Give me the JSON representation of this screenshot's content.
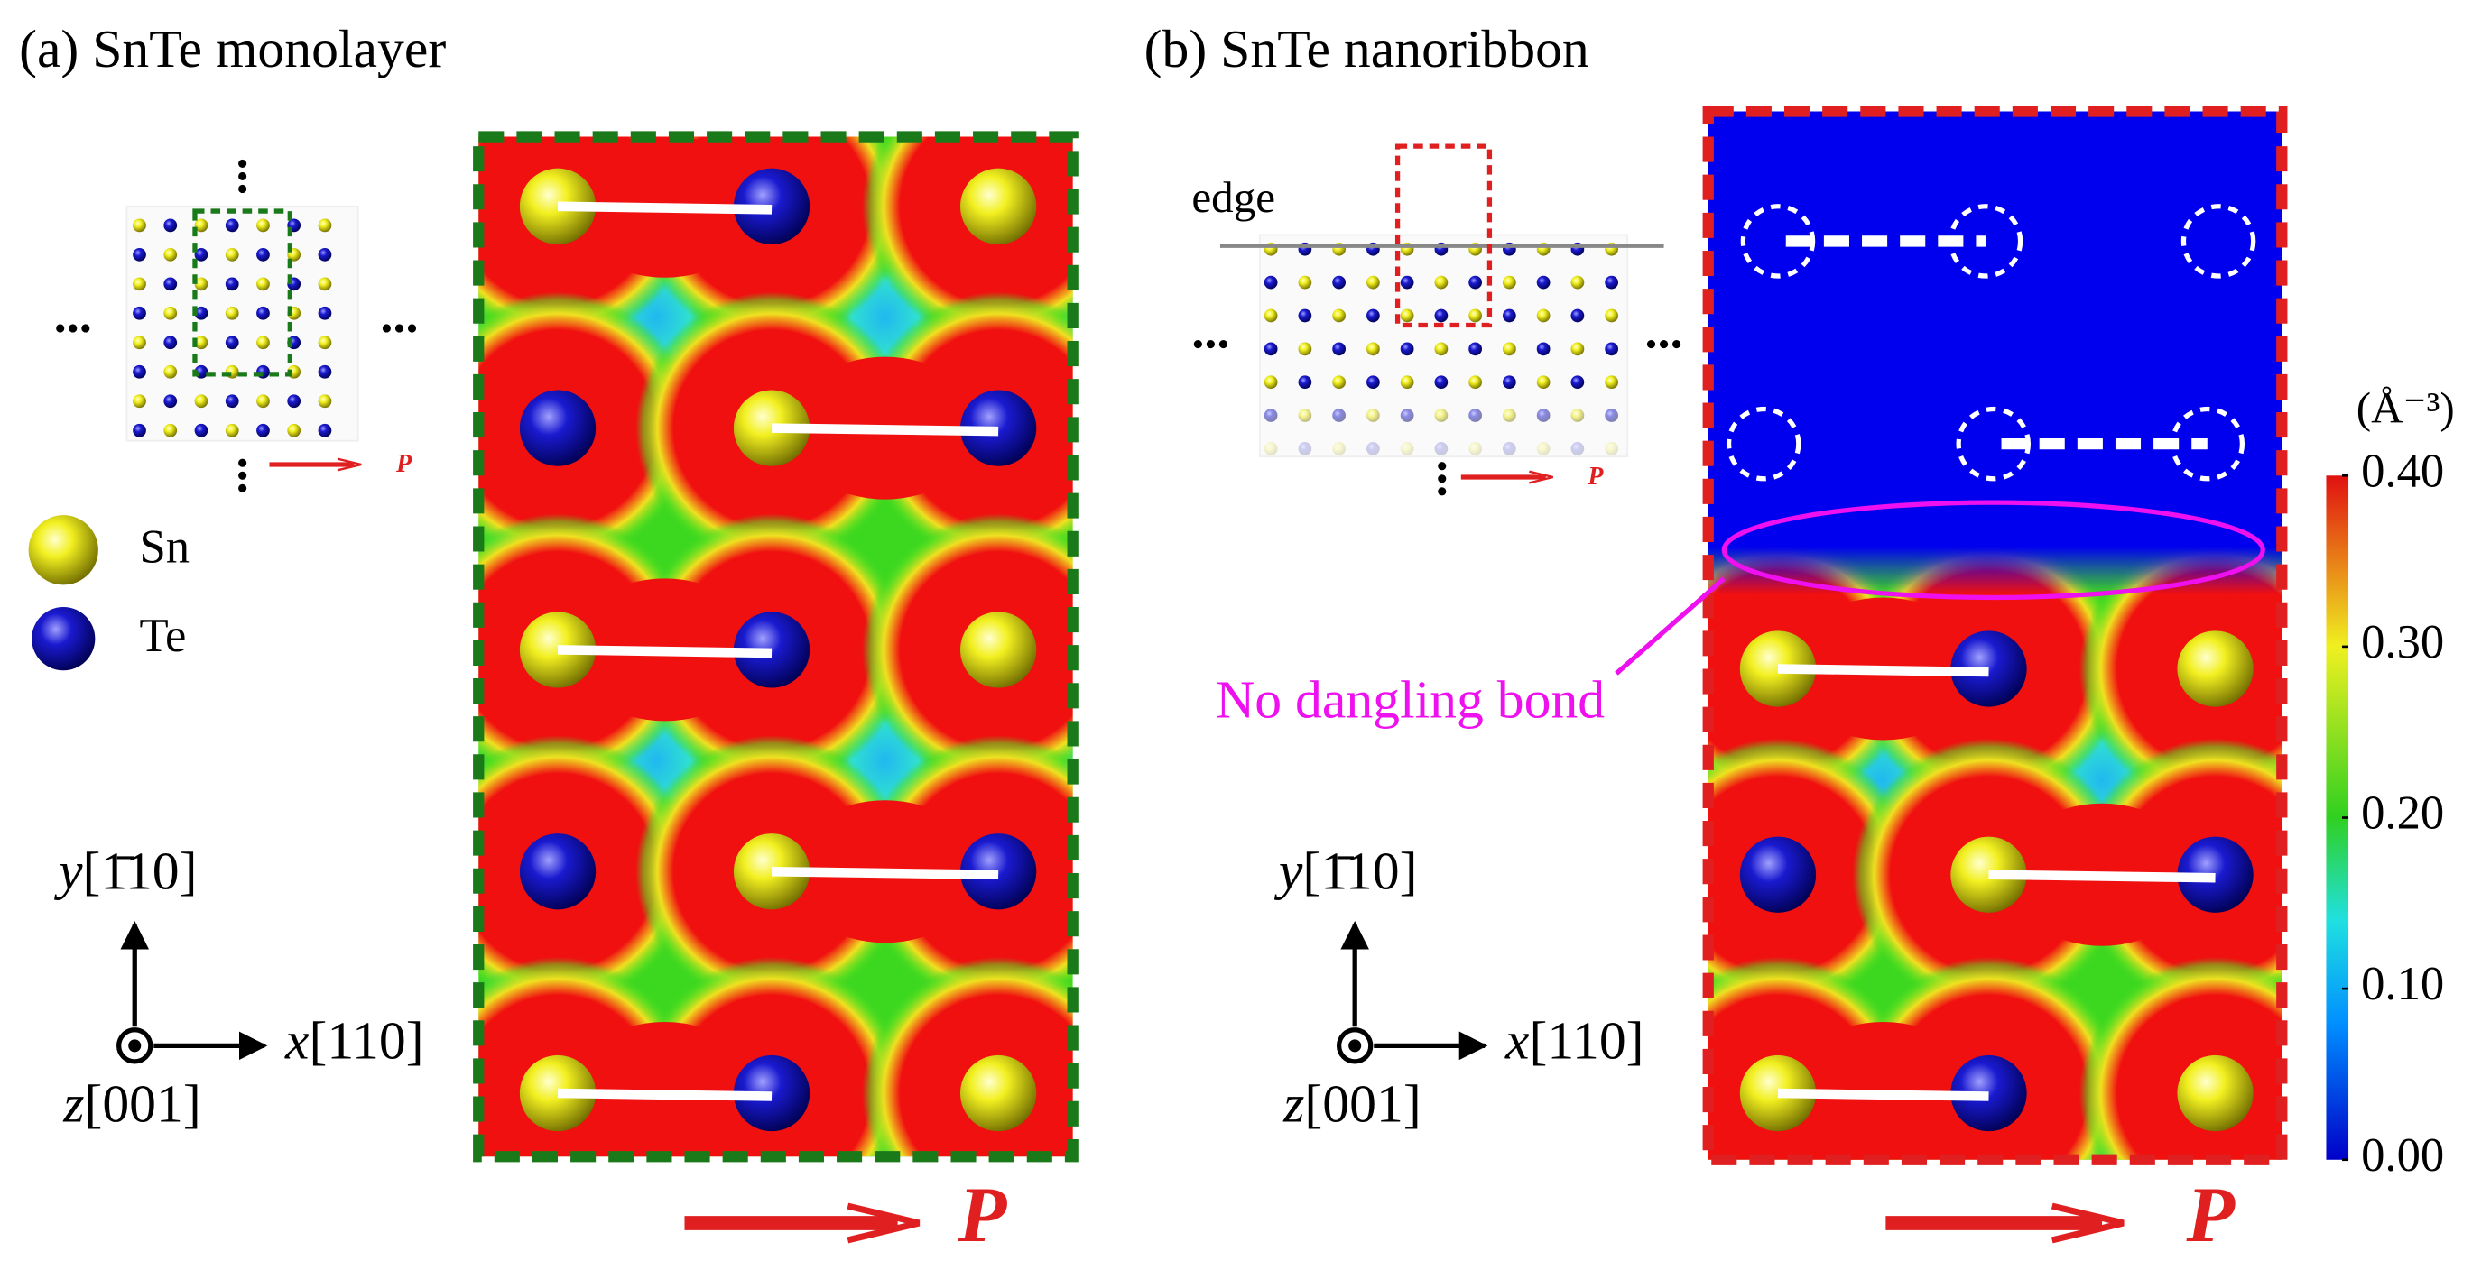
{
  "panels": [
    {
      "title": "(a) SnTe monolayer",
      "inset_polarization": "P",
      "polarization": "P",
      "axes": {
        "y_symbol": "y",
        "y_index": "[1̄10]",
        "x_symbol": "x",
        "x_index": "[110]",
        "z_symbol": "z",
        "z_index": "[001]"
      }
    },
    {
      "title": "(b) SnTe nanoribbon",
      "inset_polarization": "P",
      "polarization": "P",
      "edge_label": "edge",
      "annotation": "No dangling bond",
      "axes": {
        "y_symbol": "y",
        "y_index": "[1̄10]",
        "x_symbol": "x",
        "x_index": "[110]",
        "z_symbol": "z",
        "z_index": "[001]"
      }
    }
  ],
  "legend": [
    {
      "element": "Sn"
    },
    {
      "element": "Te"
    }
  ],
  "colorbar": {
    "unit": "(Å⁻³)",
    "lim": [
      0,
      0.4
    ],
    "ticks": [
      {
        "value": 0,
        "label": "0.00"
      },
      {
        "value": 0.1,
        "label": "0.10"
      },
      {
        "value": 0.2,
        "label": "0.20"
      },
      {
        "value": 0.3,
        "label": "0.30"
      },
      {
        "value": 0.4,
        "label": "0.40"
      }
    ]
  }
}
